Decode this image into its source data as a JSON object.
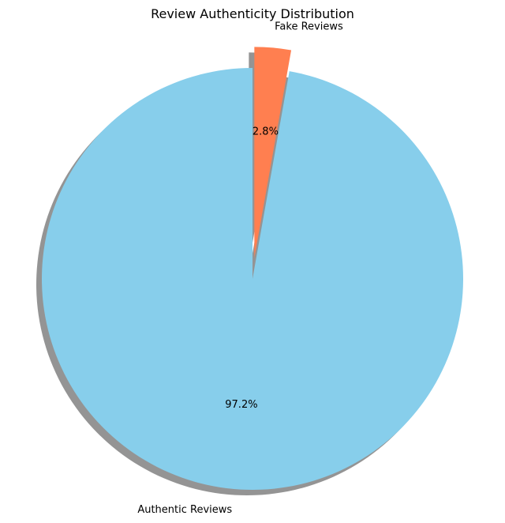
{
  "chart_data": {
    "type": "pie",
    "title": "Review Authenticity Distribution",
    "start_angle_deg": 90,
    "direction": "counterclockwise",
    "shadow": true,
    "slices": [
      {
        "label": "Authentic Reviews",
        "value": 97.2,
        "pct_label": "97.2%",
        "color": "#87CEEB",
        "explode": 0.0
      },
      {
        "label": "Fake Reviews",
        "value": 2.8,
        "pct_label": "2.8%",
        "color": "#FF7F50",
        "explode": 0.1
      }
    ]
  }
}
